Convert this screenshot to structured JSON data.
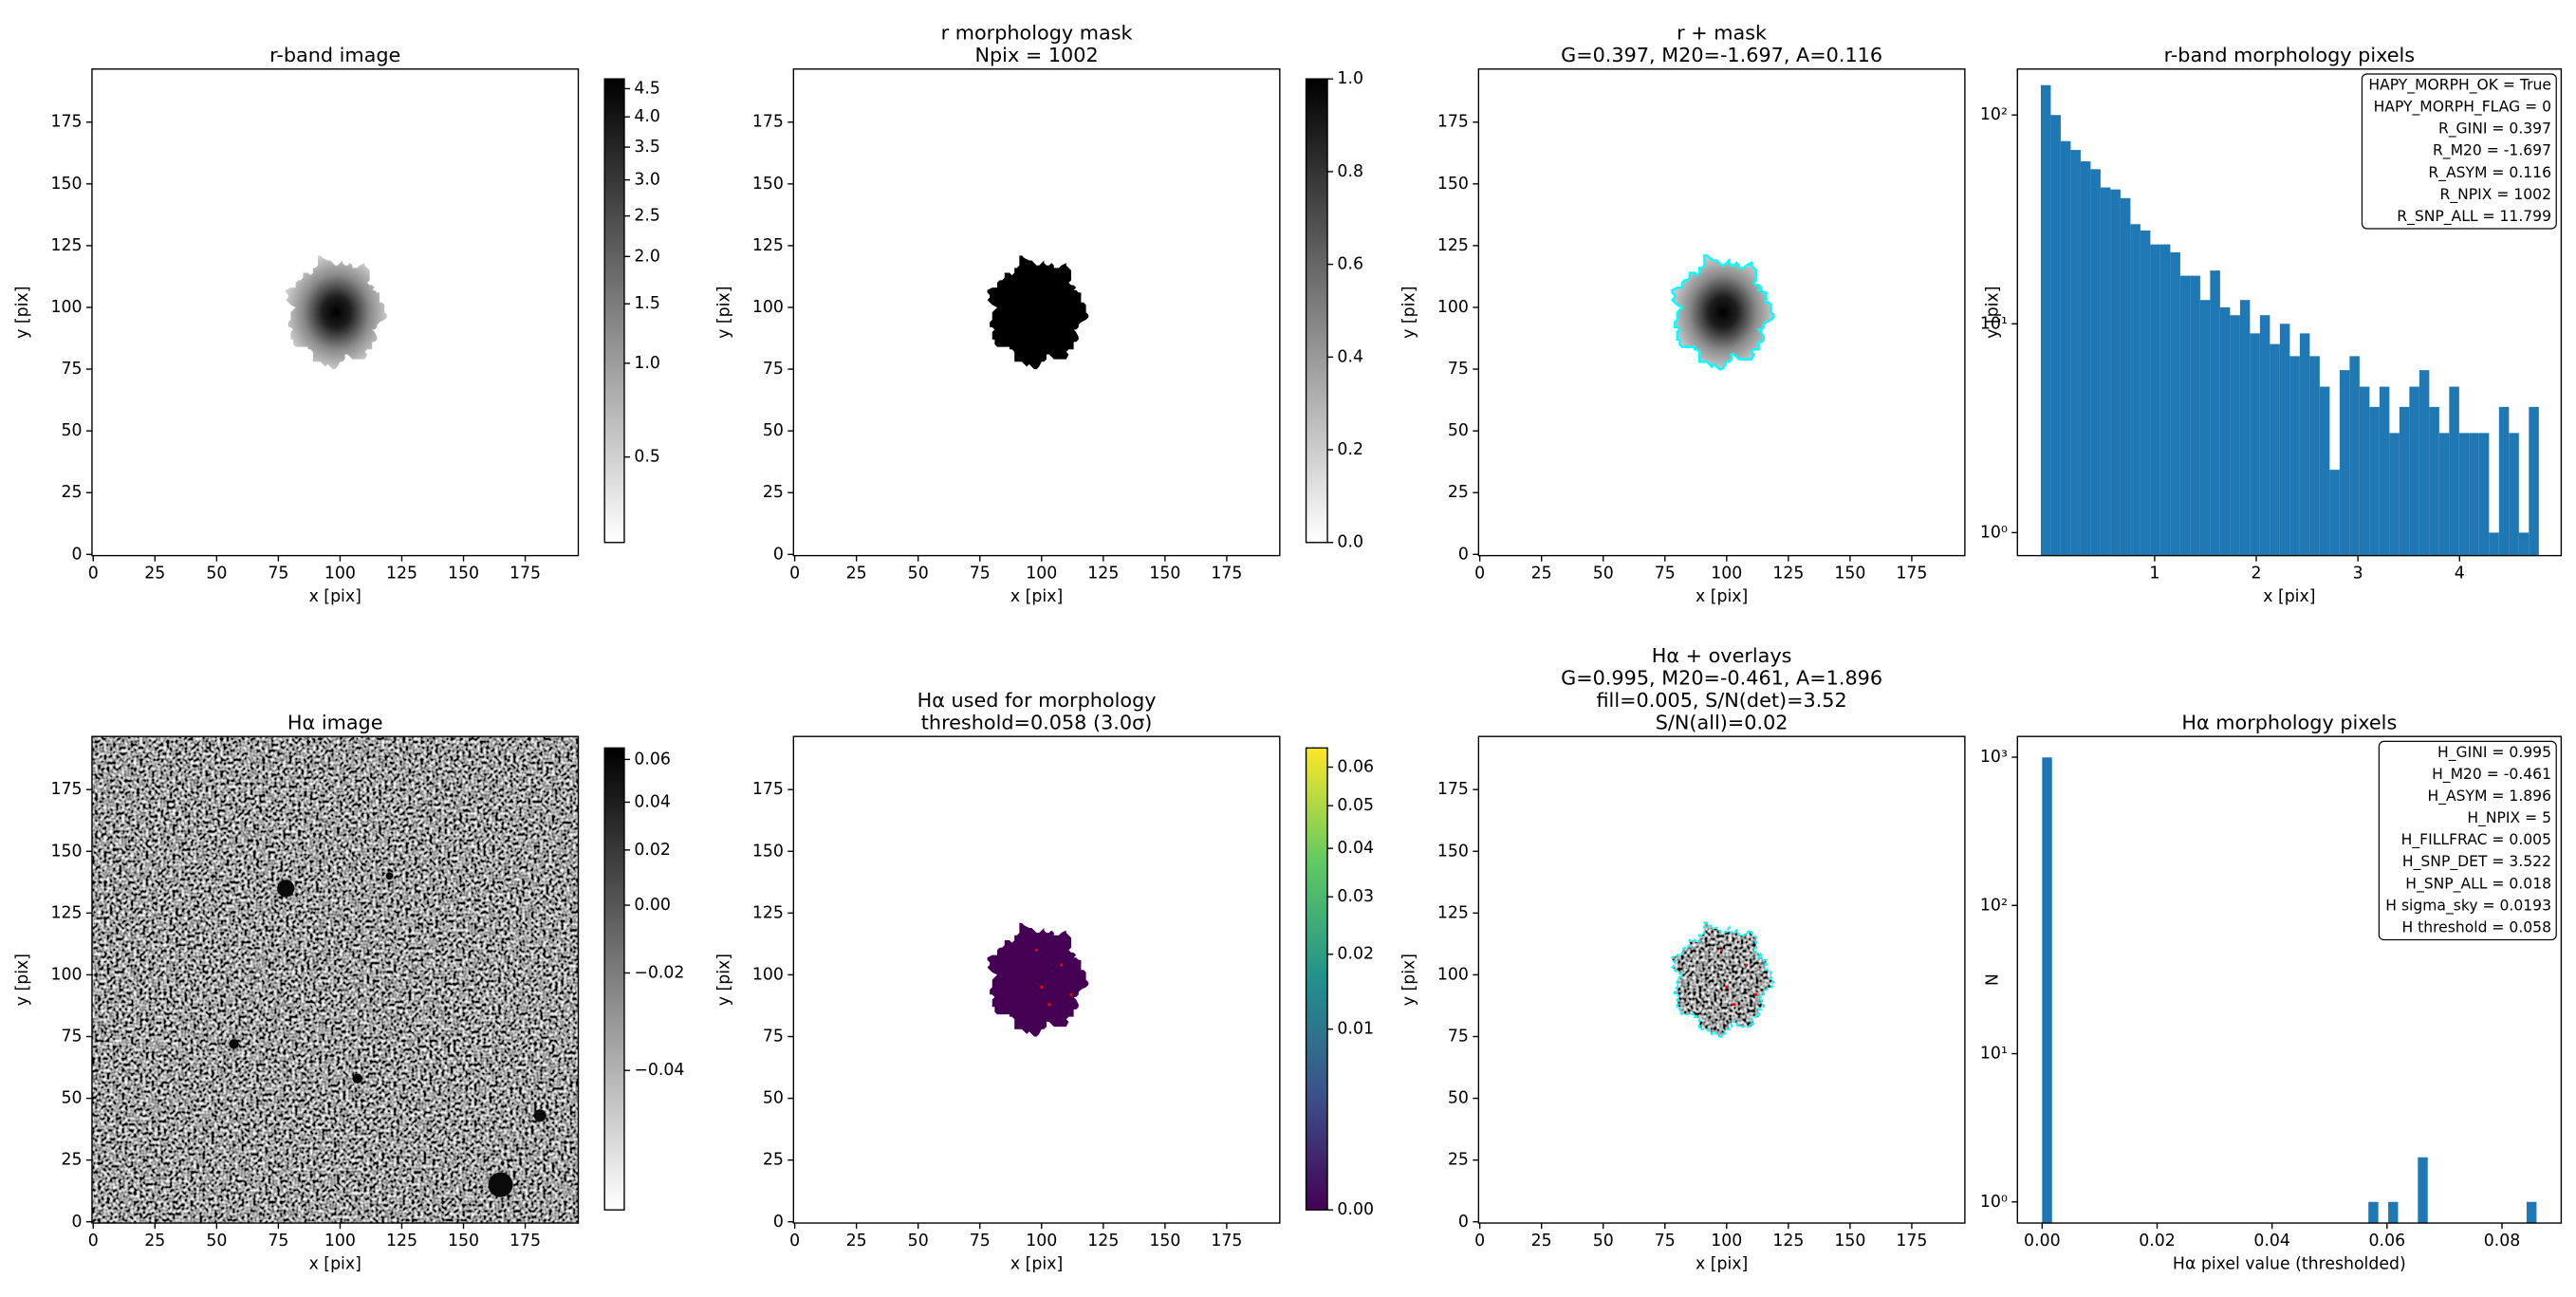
{
  "chart_data": [
    {
      "type": "image",
      "title": [
        "r-band image"
      ],
      "x_label": "x [pix]",
      "y_label": "y [pix]",
      "xlim": [
        -0.5,
        196.5
      ],
      "ylim": [
        -0.5,
        196.5
      ],
      "xticks": [
        0,
        25,
        50,
        75,
        100,
        125,
        150,
        175
      ],
      "yticks": [
        0,
        25,
        50,
        75,
        100,
        125,
        150,
        175
      ],
      "colorbar": {
        "lim": [
          0.353,
          4.68
        ],
        "stretch": "sqrt",
        "cmap": "gray_r",
        "ticks": [
          0.5,
          {
            "value": 1,
            "label": "1.0"
          },
          1.5,
          {
            "value": 2,
            "label": "2.0"
          },
          2.5,
          {
            "value": 3,
            "label": "3.0"
          },
          3.5,
          {
            "value": 4,
            "label": "4.0"
          },
          4.5
        ]
      }
    },
    {
      "type": "image",
      "title": [
        "r morphology mask",
        "Npix = 1002"
      ],
      "x_label": "x [pix]",
      "y_label": "y [pix]",
      "xlim": [
        -0.5,
        196.5
      ],
      "ylim": [
        -0.5,
        196.5
      ],
      "xticks": [
        0,
        25,
        50,
        75,
        100,
        125,
        150,
        175
      ],
      "yticks": [
        0,
        25,
        50,
        75,
        100,
        125,
        150,
        175
      ],
      "colorbar": {
        "lim": [
          0,
          1
        ],
        "stretch": "linear",
        "cmap": "gray_r",
        "ticks": [
          {
            "value": 0,
            "label": "0.0"
          },
          0.2,
          0.4,
          0.6,
          0.8,
          {
            "value": 1,
            "label": "1.0"
          }
        ]
      }
    },
    {
      "type": "image",
      "title": [
        "r + mask",
        "G=0.397, M20=-1.697, A=0.116"
      ],
      "x_label": "x [pix]",
      "y_label": "y [pix]",
      "xlim": [
        -0.5,
        196.5
      ],
      "ylim": [
        -0.5,
        196.5
      ],
      "xticks": [
        0,
        25,
        50,
        75,
        100,
        125,
        150,
        175
      ],
      "yticks": [
        0,
        25,
        50,
        75,
        100,
        125,
        150,
        175
      ]
    },
    {
      "type": "histogram",
      "title": [
        "r-band morphology pixels"
      ],
      "x_label": "x [pix]",
      "y_label": "y [pix]",
      "color": "#1f77b4",
      "yscale": "log",
      "xlim": [
        -0.35,
        5.0
      ],
      "ylim": [
        0.776,
        166
      ],
      "xticks": [
        1,
        2,
        3,
        4
      ],
      "yticks": [
        {
          "value": 1,
          "label": "10⁰"
        },
        {
          "value": 10,
          "label": "10¹"
        },
        {
          "value": 100,
          "label": "10²"
        }
      ],
      "bins": [
        -0.12,
        -0.022,
        0.076,
        0.174,
        0.272,
        0.37,
        0.468,
        0.566,
        0.664,
        0.762,
        0.86,
        0.958,
        1.056,
        1.154,
        1.252,
        1.35,
        1.448,
        1.546,
        1.644,
        1.742,
        1.84,
        1.938,
        2.036,
        2.134,
        2.232,
        2.33,
        2.428,
        2.526,
        2.624,
        2.722,
        2.82,
        2.918,
        3.016,
        3.114,
        3.212,
        3.31,
        3.408,
        3.506,
        3.604,
        3.702,
        3.8,
        3.898,
        3.996,
        4.094,
        4.192,
        4.29,
        4.388,
        4.486,
        4.584,
        4.682,
        4.78
      ],
      "values": [
        139,
        100,
        75,
        68,
        60,
        55,
        45,
        44,
        40,
        30,
        28,
        24,
        24,
        22,
        17,
        17,
        13,
        18,
        12,
        11,
        13,
        9,
        11,
        8,
        10,
        7,
        9,
        7,
        5,
        2,
        6,
        7,
        5,
        4,
        5,
        3,
        4,
        5,
        6,
        4,
        3,
        5,
        3,
        3,
        3,
        1,
        4,
        3,
        1,
        4
      ],
      "annotation": [
        "HAPY_MORPH_OK = True",
        "HAPY_MORPH_FLAG = 0",
        "R_GINI = 0.397",
        "R_M20 = -1.697",
        "R_ASYM = 0.116",
        "R_NPIX = 1002",
        "R_SNP_ALL = 11.799"
      ]
    },
    {
      "type": "image",
      "title": [
        "Hα image"
      ],
      "x_label": "x [pix]",
      "y_label": "y [pix]",
      "xlim": [
        -0.5,
        196.5
      ],
      "ylim": [
        -0.5,
        196.5
      ],
      "xticks": [
        0,
        25,
        50,
        75,
        100,
        125,
        150,
        175
      ],
      "yticks": [
        0,
        25,
        50,
        75,
        100,
        125,
        150,
        175
      ],
      "colorbar": {
        "lim": [
          -0.0506,
          0.0657
        ],
        "stretch": "sqrt",
        "cmap": "gray_r",
        "ticks": [
          {
            "value": -0.04,
            "label": "−0.04"
          },
          {
            "value": -0.02,
            "label": "−0.02"
          },
          {
            "value": 0,
            "label": "0.00"
          },
          0.02,
          0.04,
          0.06
        ]
      }
    },
    {
      "type": "image",
      "title": [
        "Hα used for morphology",
        "threshold=0.058 (3.0σ)"
      ],
      "x_label": "x [pix]",
      "y_label": "y [pix]",
      "xlim": [
        -0.5,
        196.5
      ],
      "ylim": [
        -0.5,
        196.5
      ],
      "xticks": [
        0,
        25,
        50,
        75,
        100,
        125,
        150,
        175
      ],
      "yticks": [
        0,
        25,
        50,
        75,
        100,
        125,
        150,
        175
      ],
      "colorbar": {
        "lim": [
          0,
          0.0653
        ],
        "stretch": "sqrt",
        "cmap": "viridis",
        "ticks": [
          {
            "value": 0,
            "label": "0.00"
          },
          0.01,
          0.02,
          0.03,
          0.04,
          0.05,
          0.06
        ]
      }
    },
    {
      "type": "image",
      "title": [
        "Hα + overlays",
        "G=0.995, M20=-0.461, A=1.896",
        "fill=0.005, S/N(det)=3.52",
        "S/N(all)=0.02"
      ],
      "x_label": "x [pix]",
      "y_label": "y [pix]",
      "xlim": [
        -0.5,
        196.5
      ],
      "ylim": [
        -0.5,
        196.5
      ],
      "xticks": [
        0,
        25,
        50,
        75,
        100,
        125,
        150,
        175
      ],
      "yticks": [
        0,
        25,
        50,
        75,
        100,
        125,
        150,
        175
      ]
    },
    {
      "type": "histogram",
      "title": [
        "Hα morphology pixels"
      ],
      "x_label": "Hα pixel value (thresholded)",
      "y_label": "N",
      "color": "#1f77b4",
      "yscale": "log",
      "xlim": [
        -0.0043,
        0.0903
      ],
      "ylim": [
        0.72,
        1380
      ],
      "xticks": [
        {
          "value": 0,
          "label": "0.00"
        },
        0.02,
        0.04,
        0.06,
        0.08
      ],
      "yticks": [
        {
          "value": 1,
          "label": "10⁰"
        },
        {
          "value": 10,
          "label": "10¹"
        },
        {
          "value": 100,
          "label": "10²"
        },
        {
          "value": 1000,
          "label": "10³"
        }
      ],
      "bins": [
        0,
        0.00172,
        0.00344,
        0.00516,
        0.00688,
        0.0086,
        0.01032,
        0.01204,
        0.01376,
        0.01548,
        0.0172,
        0.01892,
        0.02064,
        0.02236,
        0.02408,
        0.0258,
        0.02752,
        0.02924,
        0.03096,
        0.03268,
        0.0344,
        0.03612,
        0.03784,
        0.03956,
        0.04128,
        0.043,
        0.04472,
        0.04644,
        0.04816,
        0.04988,
        0.0516,
        0.05332,
        0.05504,
        0.05676,
        0.05848,
        0.0602,
        0.06192,
        0.06364,
        0.06536,
        0.06708,
        0.0688,
        0.07052,
        0.07224,
        0.07396,
        0.07568,
        0.0774,
        0.07912,
        0.08084,
        0.08256,
        0.08428,
        0.086
      ],
      "values": [
        997,
        0,
        0,
        0,
        0,
        0,
        0,
        0,
        0,
        0,
        0,
        0,
        0,
        0,
        0,
        0,
        0,
        0,
        0,
        0,
        0,
        0,
        0,
        0,
        0,
        0,
        0,
        0,
        0,
        0,
        0,
        0,
        0,
        1,
        0,
        1,
        0,
        0,
        2,
        0,
        0,
        0,
        0,
        0,
        0,
        0,
        0,
        0,
        0,
        1
      ],
      "annotation": [
        "H_GINI = 0.995",
        "H_M20 = -0.461",
        "H_ASYM = 1.896",
        "H_NPIX = 5",
        "H_FILLFRAC = 0.005",
        "H_SNP_DET = 3.522",
        "H_SNP_ALL = 0.018",
        "H sigma_sky = 0.0193",
        "H threshold = 0.058"
      ]
    }
  ]
}
